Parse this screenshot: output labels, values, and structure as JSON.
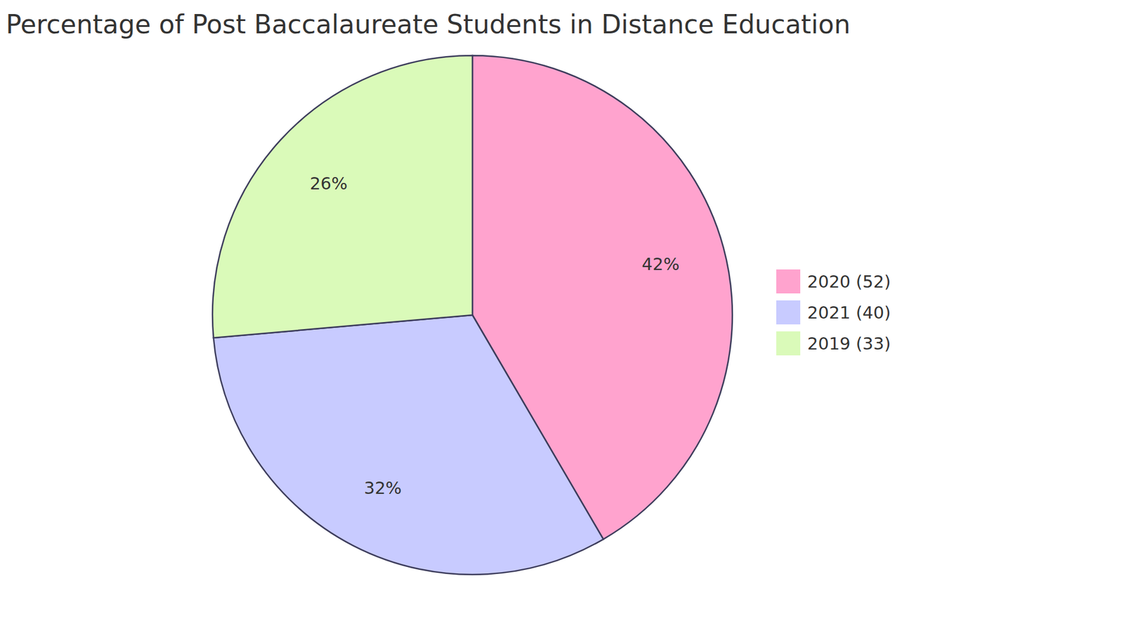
{
  "chart_data": {
    "type": "pie",
    "title": "Percentage of Post Baccalaureate Students in Distance Education",
    "categories": [
      "2020 (52)",
      "2021 (40)",
      "2019 (33)"
    ],
    "values": [
      52,
      40,
      33
    ],
    "value_labels": [
      "42%",
      "32%",
      "26%"
    ],
    "colors": [
      "#ffa3ce",
      "#c8cbff",
      "#dafab9"
    ],
    "data_labels": true,
    "legend": "right"
  }
}
